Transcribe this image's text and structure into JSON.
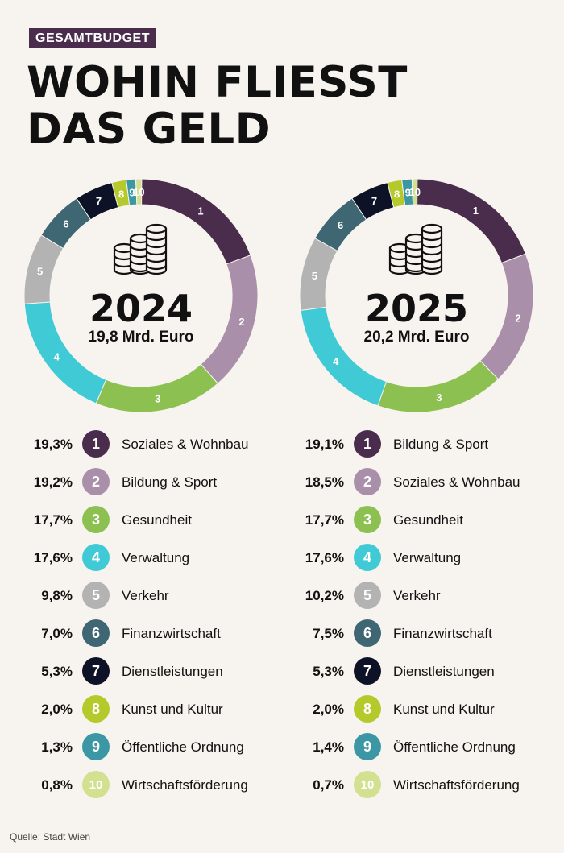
{
  "kicker": "GESAMTBUDGET",
  "headline": [
    "WOHIN FLIESST",
    "DAS GELD"
  ],
  "source": "Quelle: Stadt Wien",
  "icon": "coins-stack-icon",
  "colors": {
    "1": "#4a2c4d",
    "2": "#a98fa9",
    "3": "#8cc152",
    "4": "#3fcad6",
    "5": "#b3b3b3",
    "6": "#3e6673",
    "7": "#0d1226",
    "8": "#b6c92a",
    "9": "#3a97a3",
    "10": "#d3e08f"
  },
  "chart_data": [
    {
      "type": "pie",
      "year": "2024",
      "total": "19,8 Mrd. Euro",
      "segments": [
        {
          "num": "1",
          "pct": "19,3%",
          "value": 19.3,
          "name": "Soziales & Wohnbau"
        },
        {
          "num": "2",
          "pct": "19,2%",
          "value": 19.2,
          "name": "Bildung & Sport"
        },
        {
          "num": "3",
          "pct": "17,7%",
          "value": 17.7,
          "name": "Gesundheit"
        },
        {
          "num": "4",
          "pct": "17,6%",
          "value": 17.6,
          "name": "Verwaltung"
        },
        {
          "num": "5",
          "pct": "9,8%",
          "value": 9.8,
          "name": "Verkehr"
        },
        {
          "num": "6",
          "pct": "7,0%",
          "value": 7.0,
          "name": "Finanzwirtschaft"
        },
        {
          "num": "7",
          "pct": "5,3%",
          "value": 5.3,
          "name": "Dienstleistungen"
        },
        {
          "num": "8",
          "pct": "2,0%",
          "value": 2.0,
          "name": "Kunst und Kultur"
        },
        {
          "num": "9",
          "pct": "1,3%",
          "value": 1.3,
          "name": "Öffentliche Ordnung"
        },
        {
          "num": "10",
          "pct": "0,8%",
          "value": 0.8,
          "name": "Wirtschaftsförderung"
        }
      ]
    },
    {
      "type": "pie",
      "year": "2025",
      "total": "20,2 Mrd. Euro",
      "segments": [
        {
          "num": "1",
          "pct": "19,1%",
          "value": 19.1,
          "name": "Bildung & Sport"
        },
        {
          "num": "2",
          "pct": "18,5%",
          "value": 18.5,
          "name": "Soziales & Wohnbau"
        },
        {
          "num": "3",
          "pct": "17,7%",
          "value": 17.7,
          "name": "Gesundheit"
        },
        {
          "num": "4",
          "pct": "17,6%",
          "value": 17.6,
          "name": "Verwaltung"
        },
        {
          "num": "5",
          "pct": "10,2%",
          "value": 10.2,
          "name": "Verkehr"
        },
        {
          "num": "6",
          "pct": "7,5%",
          "value": 7.5,
          "name": "Finanzwirtschaft"
        },
        {
          "num": "7",
          "pct": "5,3%",
          "value": 5.3,
          "name": "Dienstleistungen"
        },
        {
          "num": "8",
          "pct": "2,0%",
          "value": 2.0,
          "name": "Kunst und Kultur"
        },
        {
          "num": "9",
          "pct": "1,4%",
          "value": 1.4,
          "name": "Öffentliche Ordnung"
        },
        {
          "num": "10",
          "pct": "0,7%",
          "value": 0.7,
          "name": "Wirtschaftsförderung"
        }
      ]
    }
  ]
}
